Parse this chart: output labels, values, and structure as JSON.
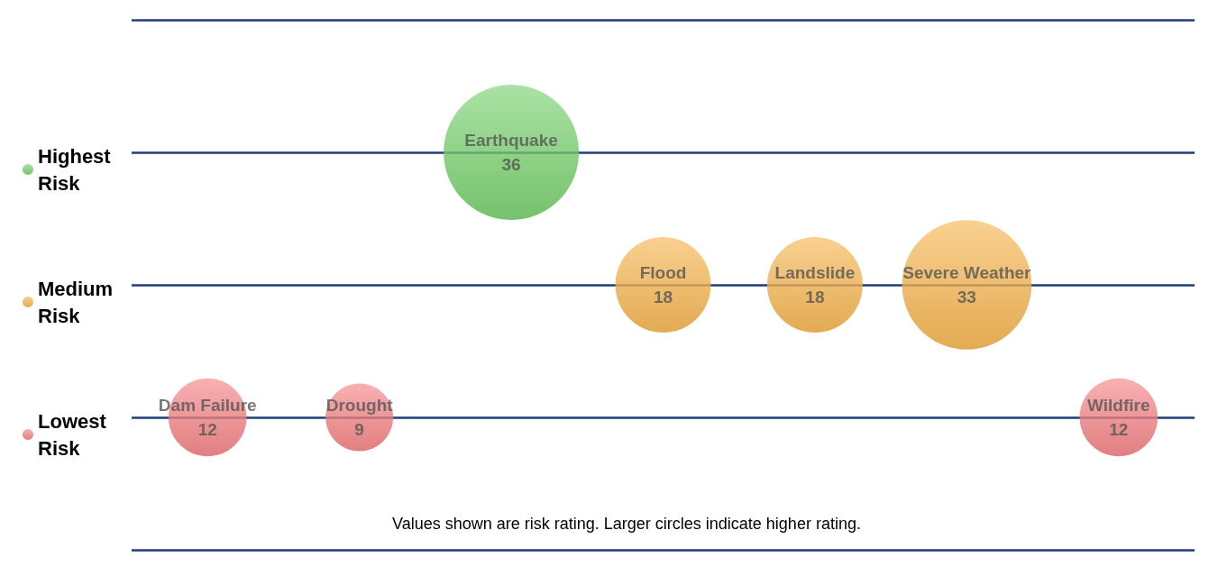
{
  "chart_data": {
    "type": "other",
    "categories": [
      "Dam Failure",
      "Drought",
      "Earthquake",
      "Flood",
      "Landslide",
      "Severe Weather",
      "Wildfire"
    ],
    "series": [
      {
        "name": "Highest Risk",
        "color": "#5cc74f",
        "values": [
          null,
          null,
          36,
          null,
          null,
          null,
          null
        ]
      },
      {
        "name": "Medium Risk",
        "color": "#f4a52a",
        "values": [
          null,
          null,
          null,
          18,
          18,
          33,
          null
        ]
      },
      {
        "name": "Lowest Risk",
        "color": "#f2686b",
        "values": [
          12,
          9,
          null,
          null,
          null,
          null,
          12
        ]
      }
    ],
    "data_labels": true,
    "legend": "left",
    "annotations": [
      "Values shown are risk rating. Larger circles indicate higher rating."
    ]
  }
}
